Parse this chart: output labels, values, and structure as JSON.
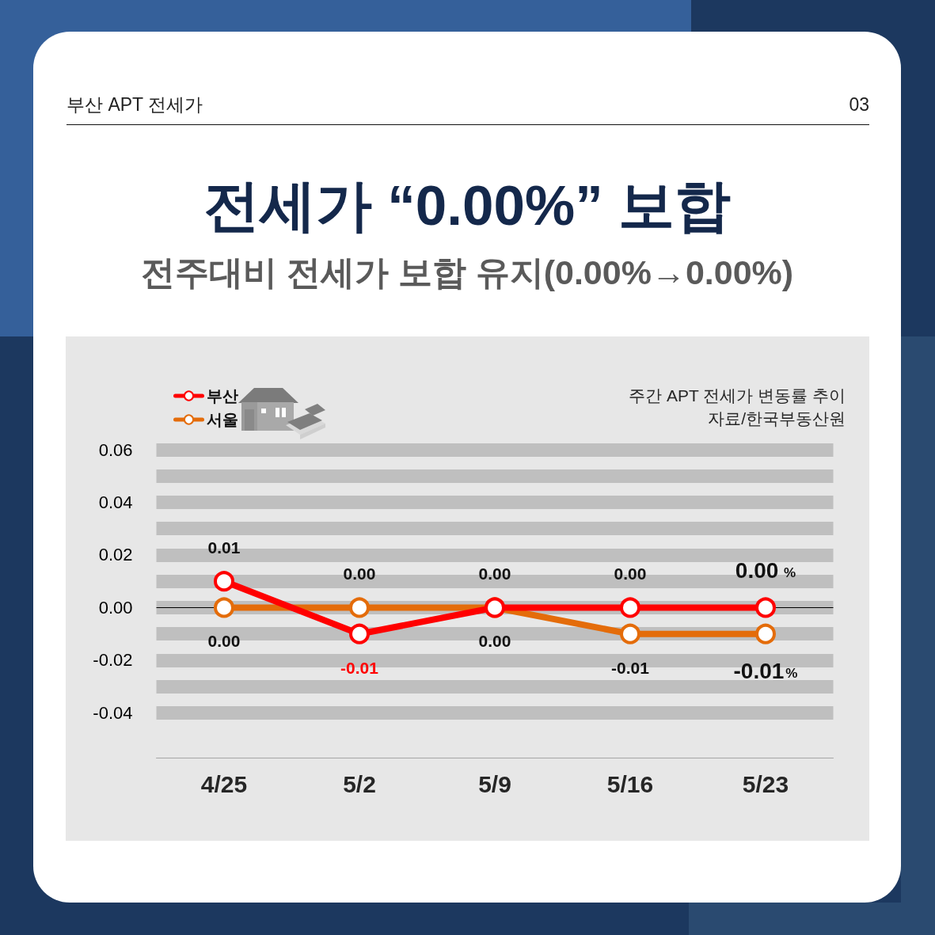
{
  "chart_data": {
    "type": "line",
    "title": "전세가 “0.00%” 보합",
    "subtitle": "전주대비 전세가 보합 유지(0.00%→0.00%)",
    "annotations": [
      "부산 APT 전세가",
      "03",
      "주간 APT 전세가 변동률 추이",
      "자료/한국부동산원"
    ],
    "categories": [
      "4/25",
      "5/2",
      "5/9",
      "5/16",
      "5/23"
    ],
    "series": [
      {
        "name": "부산",
        "color": "#ff0000",
        "values": [
          0.01,
          -0.01,
          0,
          0,
          0
        ],
        "value_labels": [
          "0.01",
          "-0.01",
          "0.00",
          "0.00",
          "0.00 %"
        ]
      },
      {
        "name": "서울",
        "color": "#e46c0a",
        "values": [
          0,
          0,
          0,
          -0.01,
          -0.01
        ],
        "value_labels": [
          "0.00",
          "0.00",
          "0.00",
          "-0.01",
          "-0.01%"
        ]
      }
    ],
    "ylim": [
      -0.057,
      0.06
    ],
    "yticks": [
      -0.04,
      -0.02,
      {
        "value": 0,
        "label": "0.00"
      },
      0.02,
      0.04,
      0.06
    ],
    "ref_lines": [
      {
        "axis": "y",
        "value": 0,
        "color": "#000000"
      }
    ],
    "grid": "y",
    "legend": "top left",
    "marker": "circle",
    "line_style": "solid"
  }
}
